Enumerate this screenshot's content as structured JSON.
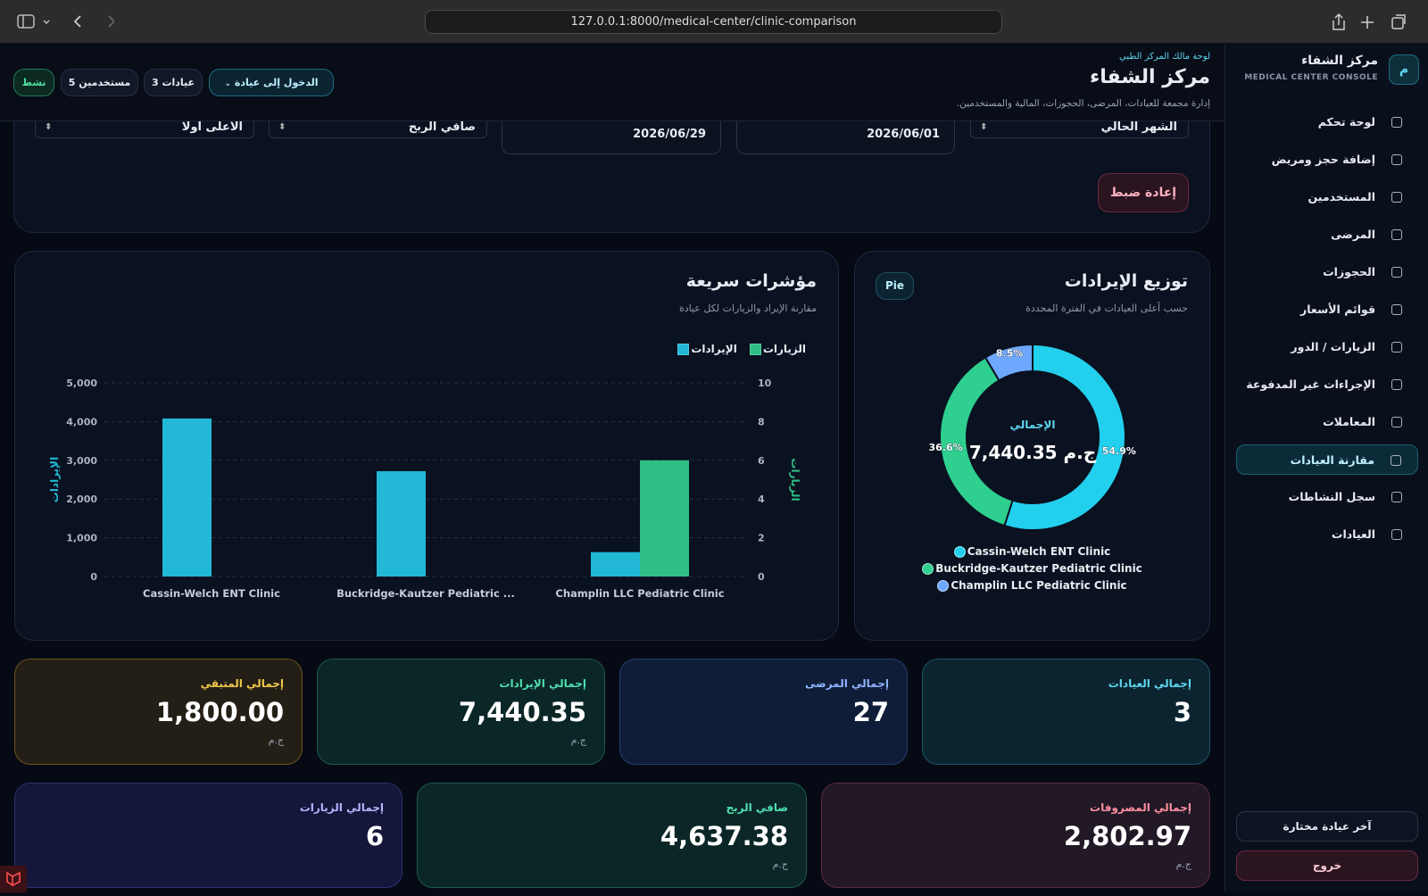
{
  "browser": {
    "url": "127.0.0.1:8000/medical-center/clinic-comparison"
  },
  "sidebar": {
    "avatar": "م",
    "title": "مركز الشفاء",
    "subtitle": "MEDICAL CENTER CONSOLE",
    "items": [
      "لوحة تحكم",
      "إضافة حجز ومريض",
      "المستخدمين",
      "المرضى",
      "الحجوزات",
      "قوائم الأسعار",
      "الزيارات / الدور",
      "الإجراءات غير المدفوعة",
      "المعاملات",
      "مقارنة العيادات",
      "سجل النشاطات",
      "العيادات"
    ],
    "footer": [
      "آخر عيادة مختارة",
      "خروج"
    ]
  },
  "header": {
    "kicker": "لوحة مالك المركز الطبي",
    "title": "مركز الشفاء",
    "description": "إدارة مجمعة للعيادات، المرضى، الحجوزات، المالية والمستخدمين.",
    "enter_clinic": "الدخول إلى عيادة",
    "clinics_badge": "عيادات 3",
    "users_badge": "مستخدمين 5",
    "status": "نشط"
  },
  "filters": {
    "period": "الشهر الحالي",
    "date_from": "2026/06/01",
    "date_to": "2026/06/29",
    "metric": "صافي الربح",
    "order": "الأعلى أولا",
    "reset": "إعادة ضبط"
  },
  "chart_data": [
    {
      "type": "bar",
      "title": "مؤشرات سريعة",
      "subtitle": "مقارنة الإيراد والزيارات لكل عيادة",
      "categories": [
        "Cassin-Welch ENT Clinic",
        "Buckridge-Kautzer Pediatric ...",
        "Champlin LLC Pediatric Clinic"
      ],
      "series": [
        {
          "name": "الإيرادات",
          "color": "#22b8d6",
          "axis": "y",
          "values": [
            4080,
            2720,
            630
          ]
        },
        {
          "name": "الزيارات",
          "color": "#2fbf85",
          "axis": "y2",
          "values": [
            0,
            0,
            6
          ]
        }
      ],
      "ylabel": "الإيرادات",
      "y2label": "الزيارات",
      "ylim": [
        0,
        5000
      ],
      "yticks": [
        0,
        {
          "value": 1000,
          "label": "1,000"
        },
        {
          "value": 2000,
          "label": "2,000"
        },
        {
          "value": 3000,
          "label": "3,000"
        },
        {
          "value": 4000,
          "label": "4,000"
        },
        {
          "value": 5000,
          "label": "5,000"
        }
      ],
      "y2lim": [
        0,
        10
      ],
      "y2ticks": [
        0,
        2,
        4,
        6,
        8,
        10
      ],
      "grid": true
    },
    {
      "type": "pie",
      "title": "توزيع الإيرادات",
      "subtitle": "حسب أعلى العيادات في الفترة المحددة",
      "badge": "Pie",
      "center_label": "الإجمالي",
      "center_value": "ج.م 7,440.35",
      "categories": [
        "Cassin-Welch ENT Clinic",
        "Buckridge-Kautzer Pediatric Clinic",
        "Champlin LLC Pediatric Clinic"
      ],
      "values": [
        54.9,
        36.6,
        8.5
      ],
      "value_labels": [
        "54.9%",
        "36.6%",
        "8.5%"
      ],
      "colors": [
        "#22d0ee",
        "#2ecf8f",
        "#6ea8fe"
      ]
    }
  ],
  "stats": [
    {
      "label": "إجمالي العيادات",
      "value": "3"
    },
    {
      "label": "إجمالي المرضى",
      "value": "27"
    },
    {
      "label": "إجمالي الإيرادات",
      "value": "7,440.35",
      "unit": "ج.م"
    },
    {
      "label": "إجمالي المتبقي",
      "value": "1,800.00",
      "unit": "ج.م"
    },
    {
      "label": "إجمالي المصروفات",
      "value": "2,802.97",
      "unit": "ج.م"
    },
    {
      "label": "صافي الربح",
      "value": "4,637.38",
      "unit": "ج.م"
    },
    {
      "label": "إجمالي الزيارات",
      "value": "6"
    }
  ]
}
